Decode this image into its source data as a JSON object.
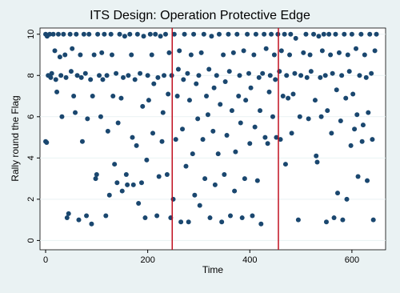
{
  "chart_data": {
    "type": "scatter",
    "title": "ITS Design: Operation Protective Edge",
    "x_label": "Time",
    "y_label": "Rally round the Flag",
    "xlim": [
      -11,
      666
    ],
    "ylim": [
      -0.45,
      10.3
    ],
    "xticks": [
      0,
      200,
      400,
      600
    ],
    "yticks": [
      0,
      2,
      4,
      6,
      8,
      10
    ],
    "grid": true,
    "vlines": [
      248,
      456
    ],
    "vline_color": "#c10f1f",
    "series": [
      {
        "color": "#1a476f",
        "x": [
          0,
          3,
          5,
          0,
          2,
          8,
          10,
          12,
          15,
          18,
          20,
          22,
          25,
          28,
          30,
          32,
          35,
          38,
          40,
          42,
          45,
          48,
          50,
          52,
          55,
          58,
          60,
          62,
          65,
          68,
          70,
          72,
          75,
          78,
          80,
          82,
          85,
          88,
          90,
          92,
          95,
          98,
          100,
          102,
          105,
          108,
          110,
          112,
          115,
          118,
          120,
          122,
          125,
          128,
          130,
          132,
          135,
          138,
          140,
          142,
          145,
          148,
          150,
          152,
          155,
          158,
          160,
          162,
          165,
          168,
          170,
          172,
          175,
          178,
          180,
          182,
          185,
          188,
          190,
          192,
          195,
          198,
          200,
          202,
          205,
          208,
          210,
          212,
          215,
          218,
          220,
          222,
          225,
          228,
          230,
          232,
          235,
          238,
          240,
          242,
          245,
          247,
          250,
          252,
          255,
          258,
          260,
          262,
          265,
          268,
          270,
          272,
          275,
          278,
          280,
          282,
          285,
          288,
          290,
          292,
          295,
          298,
          300,
          302,
          305,
          308,
          310,
          312,
          315,
          318,
          320,
          322,
          325,
          328,
          330,
          332,
          335,
          338,
          340,
          342,
          345,
          348,
          350,
          352,
          355,
          358,
          360,
          362,
          365,
          368,
          370,
          372,
          375,
          378,
          380,
          382,
          385,
          388,
          390,
          392,
          395,
          398,
          400,
          402,
          405,
          408,
          410,
          412,
          415,
          418,
          420,
          422,
          425,
          428,
          430,
          432,
          435,
          438,
          440,
          442,
          445,
          448,
          450,
          452,
          455,
          458,
          460,
          462,
          465,
          468,
          470,
          472,
          475,
          478,
          480,
          482,
          485,
          488,
          490,
          495,
          498,
          500,
          505,
          510,
          512,
          515,
          518,
          520,
          525,
          528,
          530,
          532,
          535,
          538,
          540,
          542,
          545,
          548,
          550,
          552,
          555,
          558,
          560,
          562,
          565,
          568,
          570,
          572,
          575,
          578,
          580,
          582,
          585,
          588,
          590,
          592,
          595,
          598,
          600,
          602,
          605,
          608,
          610,
          612,
          615,
          618,
          620,
          622,
          625,
          628,
          630,
          632,
          635,
          638,
          640,
          642,
          645,
          648
        ],
        "values": [
          10,
          9.9,
          8,
          4.8,
          4.75,
          10,
          7.9,
          8.1,
          10,
          9.2,
          7.8,
          7.2,
          10,
          8.9,
          8,
          6,
          10,
          9,
          7.9,
          1.1,
          1.3,
          10,
          8.2,
          9.3,
          7,
          6.2,
          10,
          8,
          1,
          9,
          7.9,
          4.8,
          10,
          8.1,
          1.2,
          5.9,
          10,
          7.8,
          0.8,
          7,
          9,
          3,
          3.2,
          10,
          8,
          6,
          9.1,
          7.8,
          10,
          1.2,
          8,
          5.3,
          2.2,
          10,
          9,
          7,
          3.7,
          8.1,
          2.8,
          5.7,
          10,
          6.9,
          2.4,
          7.9,
          9.9,
          3.2,
          2.7,
          8,
          10,
          9,
          5,
          2.7,
          7.8,
          4.6,
          10,
          1.8,
          8.1,
          2.8,
          6.5,
          9.9,
          1.1,
          3.9,
          8,
          6.8,
          10,
          9,
          5.2,
          7.6,
          10,
          1.2,
          7.9,
          3.1,
          9.9,
          4.8,
          6.2,
          8,
          10,
          3.2,
          7.1,
          9.1,
          1.1,
          8,
          2,
          10,
          4.9,
          7,
          8.3,
          9.2,
          0.9,
          5.4,
          7.8,
          10,
          3.6,
          8.1,
          0.9,
          6.8,
          9,
          4.2,
          10,
          2.2,
          7.6,
          5.9,
          8,
          1.7,
          9.1,
          4.9,
          10,
          3,
          7,
          6.1,
          8.3,
          1.1,
          9.9,
          5.3,
          7.4,
          2.7,
          8,
          4.2,
          10,
          6.6,
          0.9,
          9,
          3.2,
          7.7,
          5.1,
          10,
          8.2,
          1.2,
          6.3,
          9.1,
          2.4,
          4.3,
          10,
          7,
          8,
          5.7,
          1.1,
          9.2,
          3,
          6.8,
          10,
          8.1,
          4.7,
          7.4,
          1.2,
          9,
          5.5,
          10,
          2.9,
          7.9,
          6.3,
          0.8,
          8.1,
          10,
          5,
          9.3,
          4.7,
          7.2,
          8,
          10,
          6,
          9,
          7.8,
          5,
          10,
          8.2,
          4.9,
          9.2,
          7,
          10,
          3.7,
          8,
          6.9,
          9,
          10,
          5.2,
          7.1,
          8.1,
          9.8,
          1,
          6,
          8,
          9.1,
          10,
          7.9,
          5.9,
          9,
          8.2,
          10,
          6.8,
          4.1,
          3.8,
          9.9,
          7.9,
          6,
          9.2,
          10,
          8,
          0.9,
          6.3,
          10,
          9,
          5.2,
          8.1,
          1.1,
          10,
          7.3,
          2.3,
          9.1,
          5.8,
          8,
          1,
          10,
          6.9,
          2,
          9,
          8.2,
          4.6,
          10,
          7.1,
          5.4,
          9.3,
          6.1,
          3.1,
          8,
          10,
          4.8,
          5.6,
          9,
          7.9,
          2.9,
          6.2,
          10,
          8.1,
          4.9,
          1,
          9.2,
          10
        ]
      }
    ]
  }
}
